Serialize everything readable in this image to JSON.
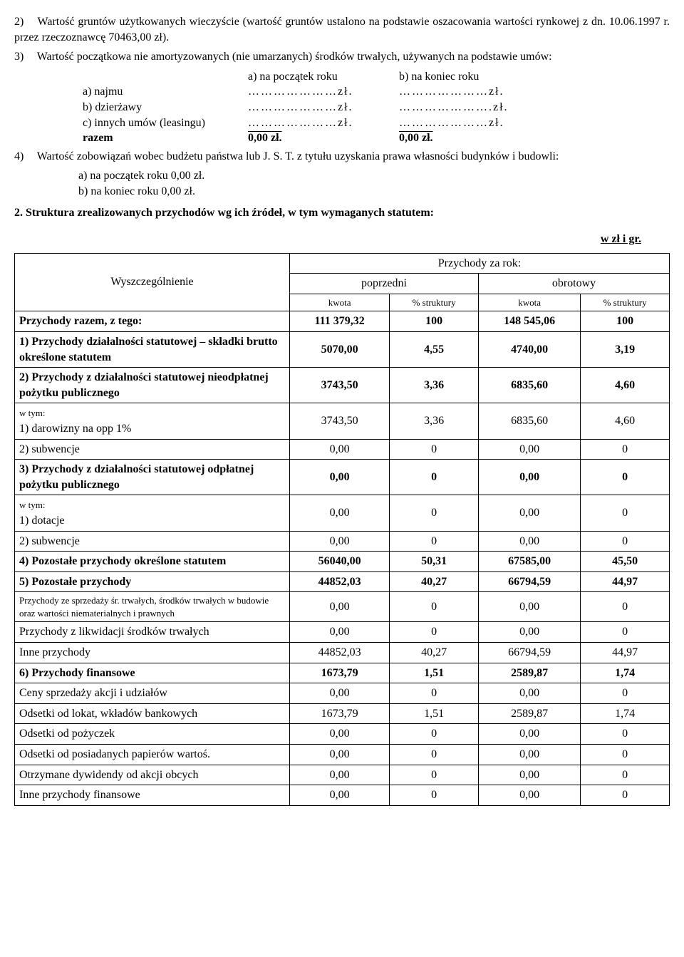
{
  "item2": {
    "num": "2)",
    "text": "Wartość gruntów użytkowanych wieczyście (wartość gruntów ustalono na podstawie oszacowania wartości rynkowej z dn. 10.06.1997 r. przez rzeczoznawcę 70463,00 zł)."
  },
  "item3": {
    "num": "3)",
    "text": "Wartość początkowa nie amortyzowanych (nie umarzanych) środków trwałych, używanych na podstawie umów:",
    "col_a_hdr": "a) na początek roku",
    "col_b_hdr": "b) na koniec roku",
    "rows": [
      {
        "label": "a)   najmu",
        "a": "…………………zł.",
        "b": "…………………zł."
      },
      {
        "label": "b)   dzierżawy",
        "a": "…………………zł.",
        "b": "………………….zł."
      },
      {
        "label": "c)   innych umów (leasingu)",
        "a": "…………………zł.",
        "b": "…………………zł."
      },
      {
        "label": "razem",
        "a": "0,00        zł.",
        "b": "0,00       zł."
      }
    ]
  },
  "item4": {
    "num": "4)",
    "text": "Wartość zobowiązań wobec budżetu państwa lub J. S. T. z tytułu uzyskania prawa własności budynków i budowli:",
    "a": "a)   na początek roku 0,00  zł.",
    "b": "b)   na koniec roku     0,00 zł."
  },
  "section2": {
    "num": "2.",
    "title": "Struktura zrealizowanych przychodów wg ich źródeł, w tym wymaganych statutem:",
    "subhead_right": "w zł i gr."
  },
  "tbl": {
    "wysz": "Wyszczególnienie",
    "przychody_za_rok": "Przychody za rok:",
    "poprzedni": "poprzedni",
    "obrotowy": "obrotowy",
    "kwota": "kwota",
    "pct": "% struktury",
    "rows": [
      {
        "label": "Przychody razem, z tego:",
        "k1": "111 379,32",
        "p1": "100",
        "k2": "148 545,06",
        "p2": "100",
        "bold": true
      },
      {
        "label": "1)   Przychody działalności statutowej – składki brutto określone statutem",
        "k1": "5070,00",
        "p1": "4,55",
        "k2": "4740,00",
        "p2": "3,19",
        "bold": true
      },
      {
        "label": "2)   Przychody z działalności statutowej nieodpłatnej pożytku publicznego",
        "k1": "3743,50",
        "p1": "3,36",
        "k2": "6835,60",
        "p2": "4,60",
        "bold": true
      },
      {
        "label": "w tym:\n1) darowizny na opp  1%",
        "k1": "3743,50",
        "p1": "3,36",
        "k2": "6835,60",
        "p2": "4,60",
        "small_first": true,
        "indent": true
      },
      {
        "label": "2) subwencje",
        "k1": "0,00",
        "p1": "0",
        "k2": "0,00",
        "p2": "0",
        "indent2": true
      },
      {
        "label": "3)  Przychody z działalności statutowej odpłatnej pożytku publicznego",
        "k1": "0,00",
        "p1": "0",
        "k2": "0,00",
        "p2": "0",
        "bold": true
      },
      {
        "label": "w tym:\n1) dotacje",
        "k1": "0,00",
        "p1": "0",
        "k2": "0,00",
        "p2": "0",
        "small_first": true,
        "indent": true
      },
      {
        "label": "2) subwencje",
        "k1": "0,00",
        "p1": "0",
        "k2": "0,00",
        "p2": "0",
        "indent2": true
      },
      {
        "label": "4)   Pozostałe przychody określone statutem",
        "k1": "56040,00",
        "p1": "50,31",
        "k2": "67585,00",
        "p2": "45,50",
        "bold": true
      },
      {
        "label": "5)   Pozostałe przychody",
        "k1": "44852,03",
        "p1": "40,27",
        "k2": "66794,59",
        "p2": "44,97",
        "bold": true
      },
      {
        "label": "Przychody ze sprzedaży śr. trwałych,   środków trwałych w budowie oraz wartości niematerialnych i prawnych",
        "k1": "0,00",
        "p1": "0",
        "k2": "0,00",
        "p2": "0",
        "small": true,
        "indent": true
      },
      {
        "label": "Przychody z likwidacji środków trwałych",
        "k1": "0,00",
        "p1": "0",
        "k2": "0,00",
        "p2": "0",
        "indent": true
      },
      {
        "label": "Inne przychody",
        "k1": "44852,03",
        "p1": "40,27",
        "k2": "66794,59",
        "p2": "44,97",
        "indent": true
      },
      {
        "label": "6)   Przychody finansowe",
        "k1": "1673,79",
        "p1": "1,51",
        "k2": "2589,87",
        "p2": "1,74",
        "bold": true
      },
      {
        "label": "Ceny sprzedaży akcji i udziałów",
        "k1": "0,00",
        "p1": "0",
        "k2": "0,00",
        "p2": "0",
        "indent": true
      },
      {
        "label": "Odsetki od lokat, wkładów bankowych",
        "k1": "1673,79",
        "p1": "1,51",
        "k2": "2589,87",
        "p2": "1,74",
        "indent": true
      },
      {
        "label": "Odsetki od pożyczek",
        "k1": "0,00",
        "p1": "0",
        "k2": "0,00",
        "p2": "0",
        "indent": true
      },
      {
        "label": "Odsetki od posiadanych papierów wartoś.",
        "k1": "0,00",
        "p1": "0",
        "k2": "0,00",
        "p2": "0",
        "indent": true
      },
      {
        "label": "Otrzymane dywidendy od akcji obcych",
        "k1": "0,00",
        "p1": "0",
        "k2": "0,00",
        "p2": "0",
        "indent": true
      },
      {
        "label": "Inne przychody finansowe",
        "k1": "0,00",
        "p1": "0",
        "k2": "0,00",
        "p2": "0",
        "indent": true
      }
    ]
  }
}
